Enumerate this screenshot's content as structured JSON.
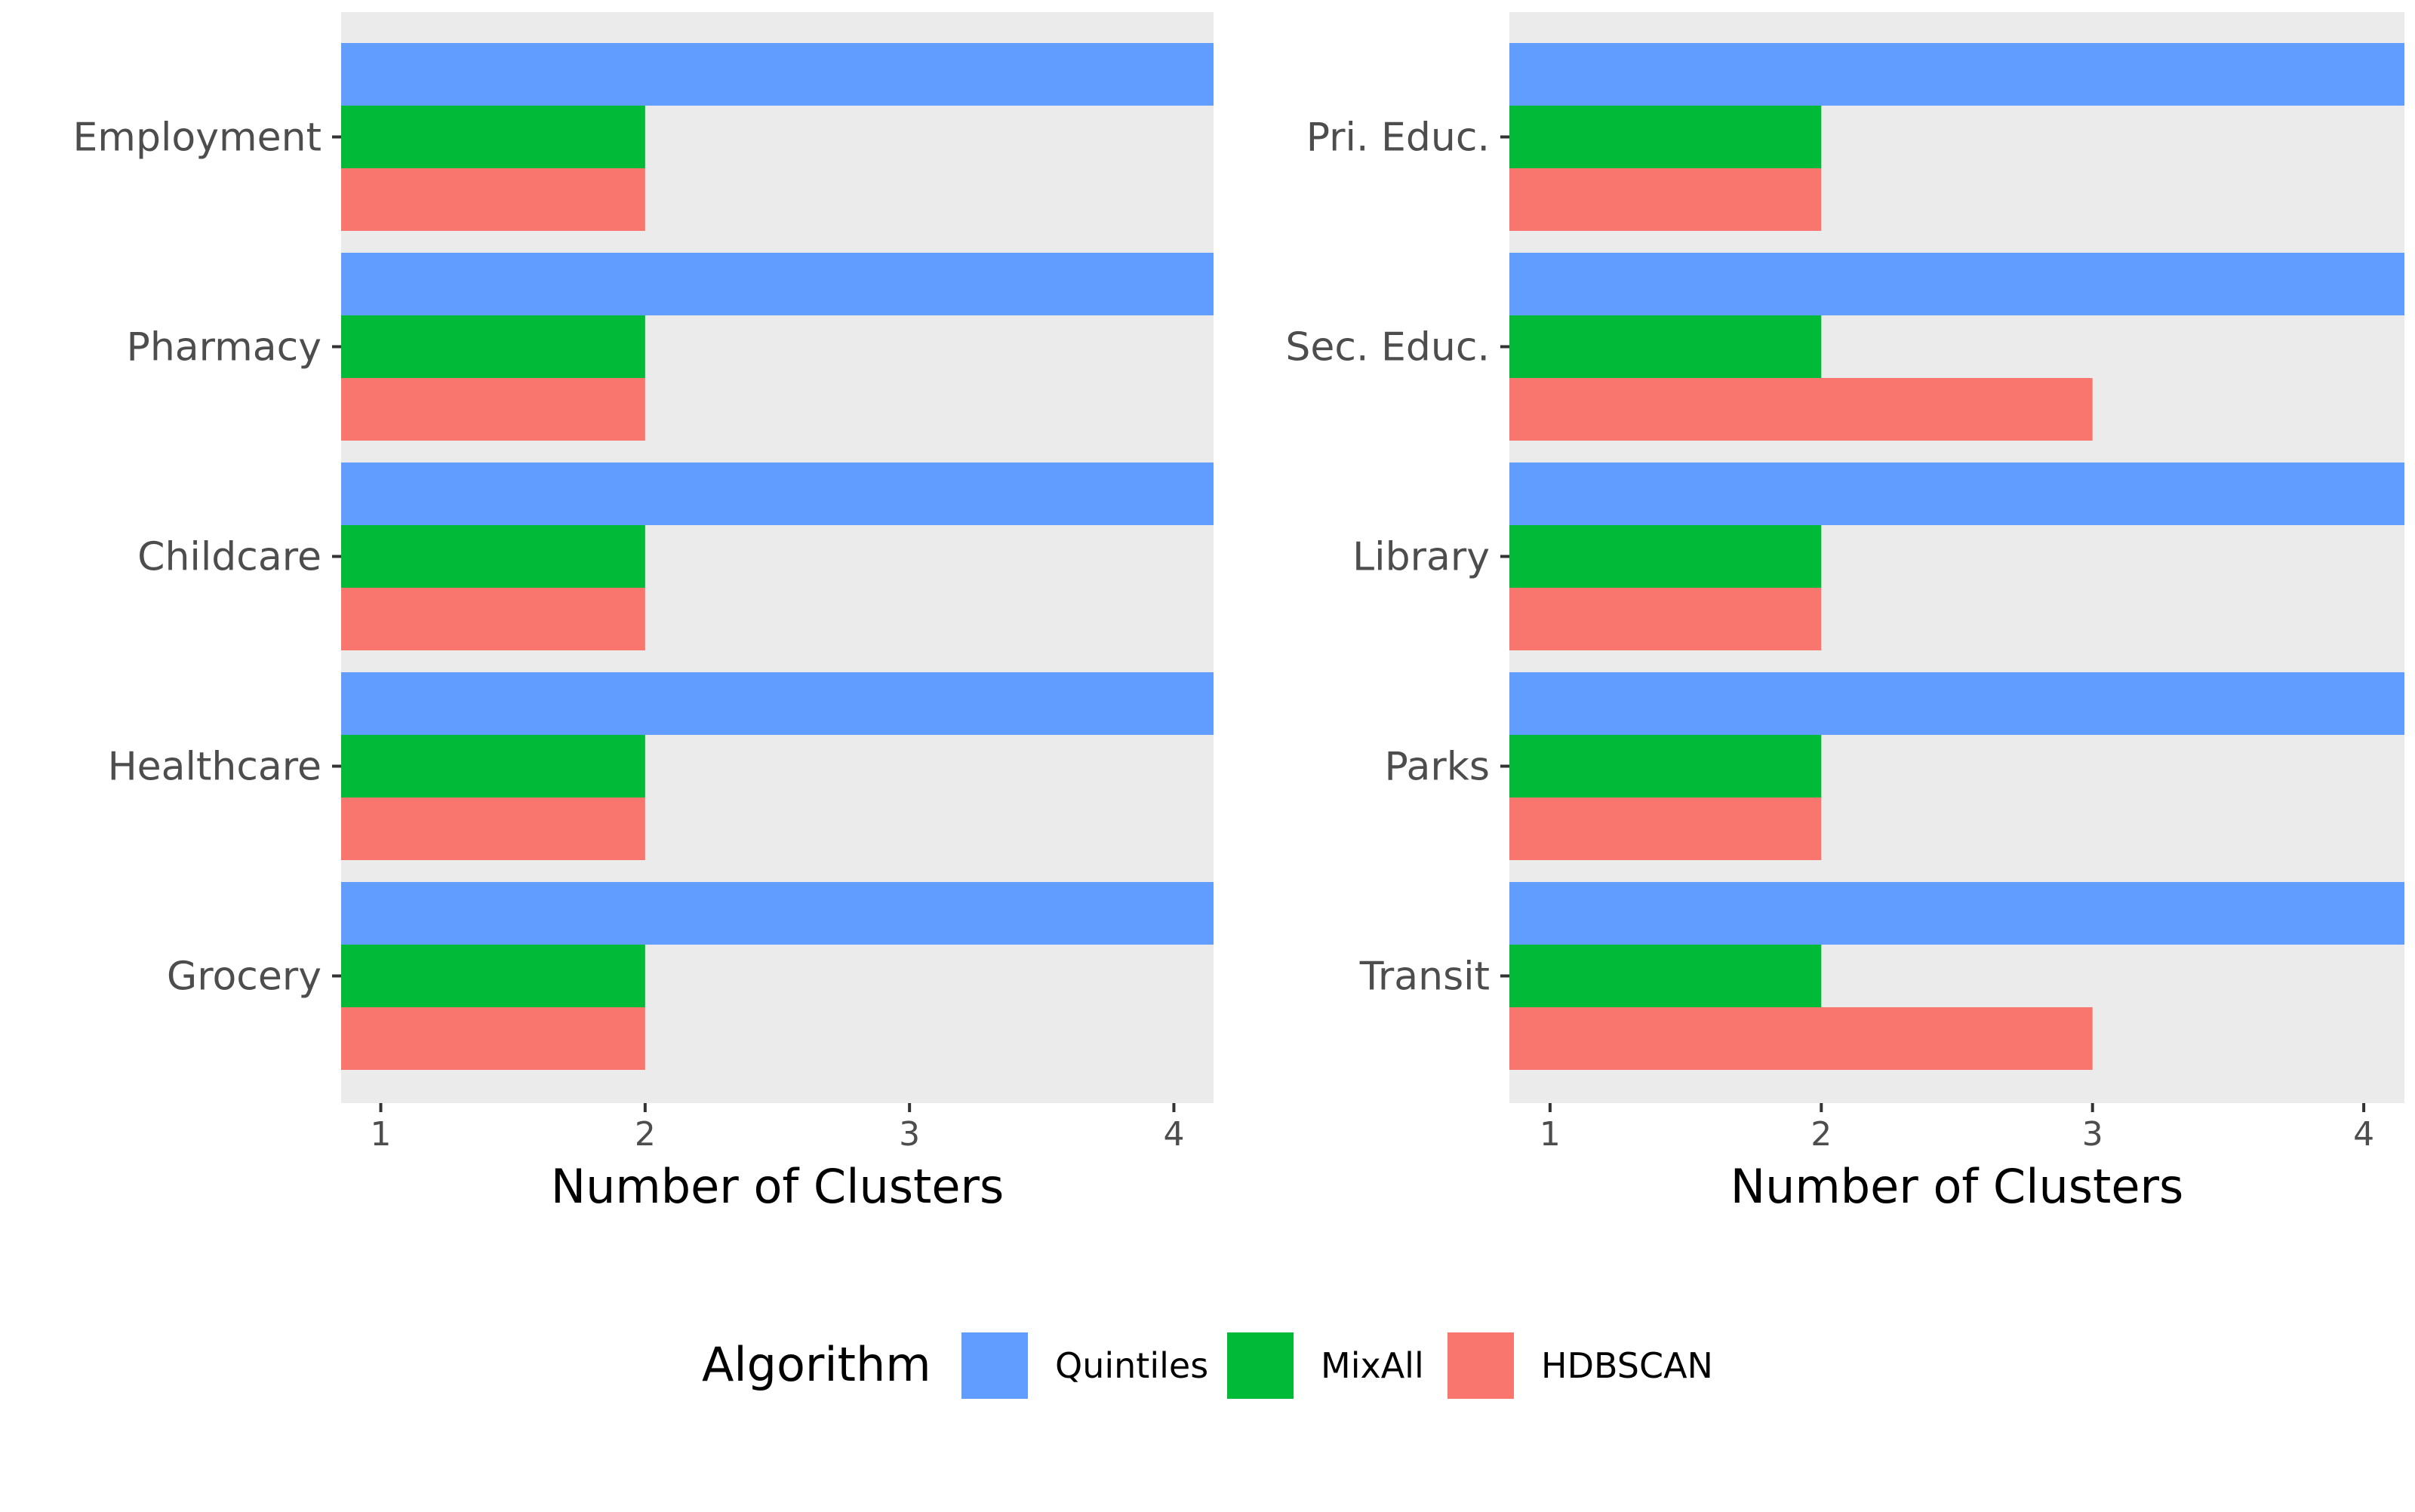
{
  "chart_data": [
    {
      "type": "bar",
      "orientation": "horizontal",
      "categories": [
        "Employment",
        "Pharmacy",
        "Childcare",
        "Healthcare",
        "Grocery"
      ],
      "series": [
        {
          "name": "Quintiles",
          "color": "#619CFF",
          "values": [
            5,
            5,
            5,
            5,
            5
          ]
        },
        {
          "name": "MixAll",
          "color": "#00BA38",
          "values": [
            2,
            2,
            2,
            2,
            2
          ]
        },
        {
          "name": "HDBSCAN",
          "color": "#F8766D",
          "values": [
            2,
            2,
            2,
            2,
            2
          ]
        }
      ],
      "xlabel": "Number of Clusters",
      "xticks": [
        "1",
        "2",
        "3",
        "4"
      ],
      "xlim": [
        0.85,
        4.15
      ],
      "grid": false
    },
    {
      "type": "bar",
      "orientation": "horizontal",
      "categories": [
        "Pri. Educ.",
        "Sec. Educ.",
        "Library",
        "Parks",
        "Transit"
      ],
      "series": [
        {
          "name": "Quintiles",
          "color": "#619CFF",
          "values": [
            5,
            5,
            5,
            5,
            5
          ]
        },
        {
          "name": "MixAll",
          "color": "#00BA38",
          "values": [
            2,
            2,
            2,
            2,
            2
          ]
        },
        {
          "name": "HDBSCAN",
          "color": "#F8766D",
          "values": [
            2,
            3,
            2,
            2,
            3
          ]
        }
      ],
      "xlabel": "Number of Clusters",
      "xticks": [
        "1",
        "2",
        "3",
        "4"
      ],
      "xlim": [
        0.85,
        4.15
      ],
      "grid": false
    }
  ],
  "legend": {
    "title": "Algorithm",
    "position": "bottom",
    "items": [
      {
        "label": "Quintiles",
        "color": "#619CFF"
      },
      {
        "label": "MixAll",
        "color": "#00BA38"
      },
      {
        "label": "HDBSCAN",
        "color": "#F8766D"
      }
    ]
  }
}
